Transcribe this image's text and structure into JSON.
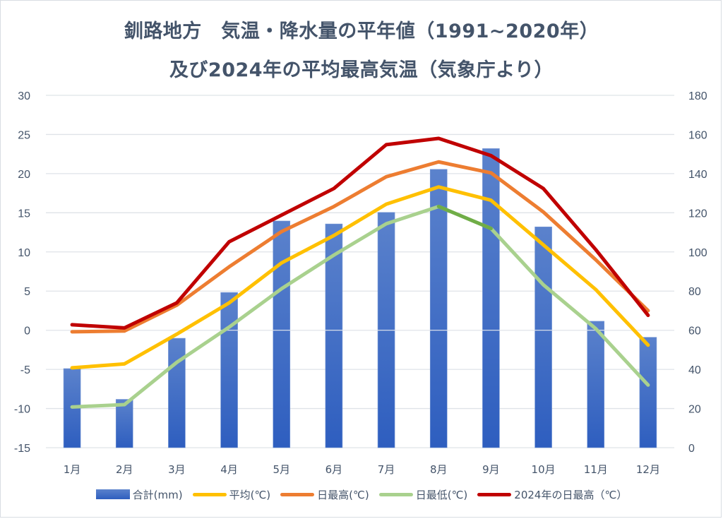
{
  "chart_data": {
    "type": "bar+line",
    "title": [
      "釧路地方　気温・降水量の平年値（1991~2020年）",
      "及び2024年の平均最高気温（気象庁より）"
    ],
    "categories": [
      "1月",
      "2月",
      "3月",
      "4月",
      "5月",
      "6月",
      "7月",
      "8月",
      "9月",
      "10月",
      "11月",
      "12月"
    ],
    "left_axis": {
      "label": "",
      "min": -15,
      "max": 30,
      "step": 5,
      "ticks": [
        "30",
        "25",
        "20",
        "15",
        "10",
        "5",
        "0",
        "-5",
        "-10",
        "-15"
      ]
    },
    "right_axis": {
      "label": "",
      "min": 0,
      "max": 180,
      "step": 20,
      "ticks": [
        "180",
        "160",
        "140",
        "120",
        "100",
        "80",
        "60",
        "40",
        "20",
        "0"
      ]
    },
    "grid": true,
    "legend_position": "bottom",
    "series": [
      {
        "name": "合計(mm)",
        "type": "bar",
        "axis": "right",
        "color": "#4472c4",
        "values": [
          40.4,
          24.7,
          55.9,
          79.3,
          115.8,
          114.3,
          120.2,
          142.2,
          152.8,
          112.8,
          64.6,
          56.4
        ]
      },
      {
        "name": "平均(℃)",
        "type": "line",
        "axis": "left",
        "color": "#ffc000",
        "values": [
          -4.8,
          -4.3,
          -0.5,
          3.5,
          8.6,
          12.1,
          16.1,
          18.3,
          16.6,
          10.9,
          5.2,
          -1.9
        ]
      },
      {
        "name": "日最高(℃)",
        "type": "line",
        "axis": "left",
        "color": "#ed7d31",
        "values": [
          -0.2,
          -0.1,
          3.2,
          8.1,
          12.6,
          15.8,
          19.6,
          21.5,
          20.1,
          15.1,
          9.0,
          2.5
        ]
      },
      {
        "name": "日最低(℃)",
        "type": "line",
        "axis": "left",
        "color": "#a9d18e",
        "highlight_segment": {
          "from": 7,
          "to": 8,
          "color": "#70ad47"
        },
        "values": [
          -9.8,
          -9.5,
          -4.1,
          0.4,
          5.3,
          9.6,
          13.6,
          15.8,
          13.0,
          5.8,
          0.2,
          -7.0
        ]
      },
      {
        "name": "2024年の日最高（℃）",
        "type": "line",
        "axis": "left",
        "color": "#c00000",
        "values": [
          0.7,
          0.3,
          3.5,
          11.3,
          14.7,
          18.1,
          23.7,
          24.5,
          22.3,
          18.1,
          10.3,
          1.9
        ]
      }
    ]
  }
}
